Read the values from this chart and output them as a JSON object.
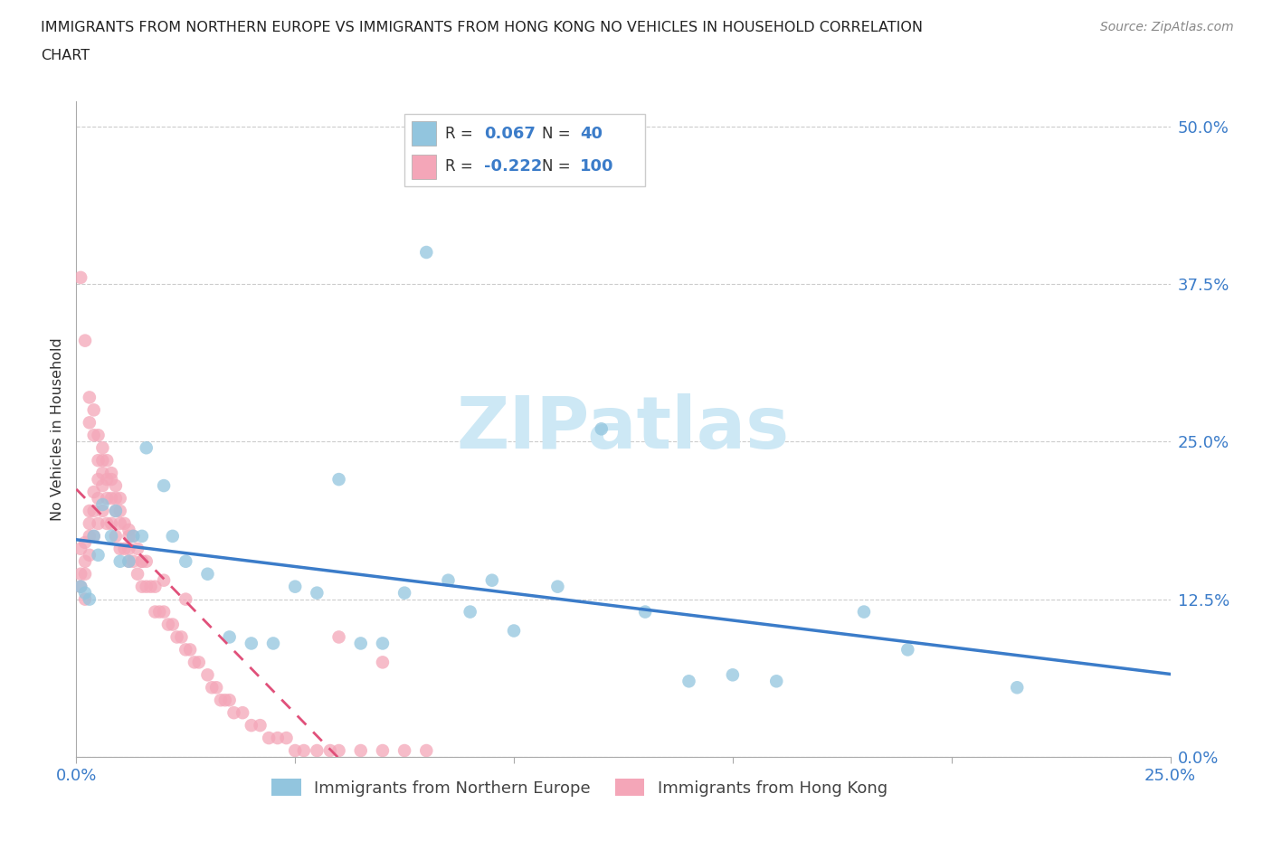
{
  "title_line1": "IMMIGRANTS FROM NORTHERN EUROPE VS IMMIGRANTS FROM HONG KONG NO VEHICLES IN HOUSEHOLD CORRELATION",
  "title_line2": "CHART",
  "source": "Source: ZipAtlas.com",
  "ylabel": "No Vehicles in Household",
  "ytick_labels": [
    "0.0%",
    "12.5%",
    "25.0%",
    "37.5%",
    "50.0%"
  ],
  "ytick_values": [
    0.0,
    0.125,
    0.25,
    0.375,
    0.5
  ],
  "xlim": [
    0.0,
    0.25
  ],
  "ylim": [
    0.0,
    0.52
  ],
  "legend_blue_R": "0.067",
  "legend_blue_N": "40",
  "legend_pink_R": "-0.222",
  "legend_pink_N": "100",
  "legend_blue_label": "Immigrants from Northern Europe",
  "legend_pink_label": "Immigrants from Hong Kong",
  "blue_color": "#92c5de",
  "pink_color": "#f4a6b8",
  "line_blue": "#3b7cc9",
  "line_pink": "#e0507a",
  "watermark": "ZIPatlas",
  "watermark_color": "#cde8f5",
  "blue_scatter_x": [
    0.001,
    0.002,
    0.003,
    0.004,
    0.005,
    0.006,
    0.008,
    0.009,
    0.01,
    0.012,
    0.013,
    0.015,
    0.016,
    0.02,
    0.022,
    0.025,
    0.03,
    0.035,
    0.04,
    0.045,
    0.05,
    0.055,
    0.06,
    0.065,
    0.07,
    0.075,
    0.08,
    0.085,
    0.09,
    0.095,
    0.1,
    0.11,
    0.12,
    0.13,
    0.14,
    0.15,
    0.16,
    0.18,
    0.19,
    0.215
  ],
  "blue_scatter_y": [
    0.135,
    0.13,
    0.125,
    0.175,
    0.16,
    0.2,
    0.175,
    0.195,
    0.155,
    0.155,
    0.175,
    0.175,
    0.245,
    0.215,
    0.175,
    0.155,
    0.145,
    0.095,
    0.09,
    0.09,
    0.135,
    0.13,
    0.22,
    0.09,
    0.09,
    0.13,
    0.4,
    0.14,
    0.115,
    0.14,
    0.1,
    0.135,
    0.26,
    0.115,
    0.06,
    0.065,
    0.06,
    0.115,
    0.085,
    0.055
  ],
  "pink_scatter_x": [
    0.001,
    0.001,
    0.002,
    0.002,
    0.002,
    0.003,
    0.003,
    0.003,
    0.003,
    0.004,
    0.004,
    0.004,
    0.005,
    0.005,
    0.005,
    0.006,
    0.006,
    0.006,
    0.007,
    0.007,
    0.007,
    0.008,
    0.008,
    0.008,
    0.009,
    0.009,
    0.009,
    0.01,
    0.01,
    0.01,
    0.011,
    0.011,
    0.012,
    0.012,
    0.012,
    0.013,
    0.013,
    0.014,
    0.014,
    0.015,
    0.015,
    0.016,
    0.016,
    0.017,
    0.018,
    0.018,
    0.019,
    0.02,
    0.021,
    0.022,
    0.023,
    0.024,
    0.025,
    0.026,
    0.027,
    0.028,
    0.03,
    0.031,
    0.032,
    0.033,
    0.034,
    0.035,
    0.036,
    0.038,
    0.04,
    0.042,
    0.044,
    0.046,
    0.048,
    0.05,
    0.052,
    0.055,
    0.058,
    0.06,
    0.065,
    0.07,
    0.075,
    0.08,
    0.001,
    0.002,
    0.001,
    0.002,
    0.003,
    0.003,
    0.004,
    0.004,
    0.005,
    0.005,
    0.006,
    0.006,
    0.007,
    0.008,
    0.009,
    0.01,
    0.012,
    0.015,
    0.02,
    0.025,
    0.06,
    0.07
  ],
  "pink_scatter_y": [
    0.165,
    0.145,
    0.17,
    0.155,
    0.145,
    0.195,
    0.185,
    0.175,
    0.16,
    0.21,
    0.195,
    0.175,
    0.22,
    0.205,
    0.185,
    0.235,
    0.215,
    0.195,
    0.22,
    0.205,
    0.185,
    0.22,
    0.205,
    0.185,
    0.215,
    0.195,
    0.175,
    0.205,
    0.185,
    0.165,
    0.185,
    0.165,
    0.18,
    0.165,
    0.155,
    0.175,
    0.155,
    0.165,
    0.145,
    0.155,
    0.135,
    0.155,
    0.135,
    0.135,
    0.135,
    0.115,
    0.115,
    0.115,
    0.105,
    0.105,
    0.095,
    0.095,
    0.085,
    0.085,
    0.075,
    0.075,
    0.065,
    0.055,
    0.055,
    0.045,
    0.045,
    0.045,
    0.035,
    0.035,
    0.025,
    0.025,
    0.015,
    0.015,
    0.015,
    0.005,
    0.005,
    0.005,
    0.005,
    0.005,
    0.005,
    0.005,
    0.005,
    0.005,
    0.38,
    0.33,
    0.135,
    0.125,
    0.285,
    0.265,
    0.275,
    0.255,
    0.255,
    0.235,
    0.245,
    0.225,
    0.235,
    0.225,
    0.205,
    0.195,
    0.175,
    0.155,
    0.14,
    0.125,
    0.095,
    0.075
  ]
}
